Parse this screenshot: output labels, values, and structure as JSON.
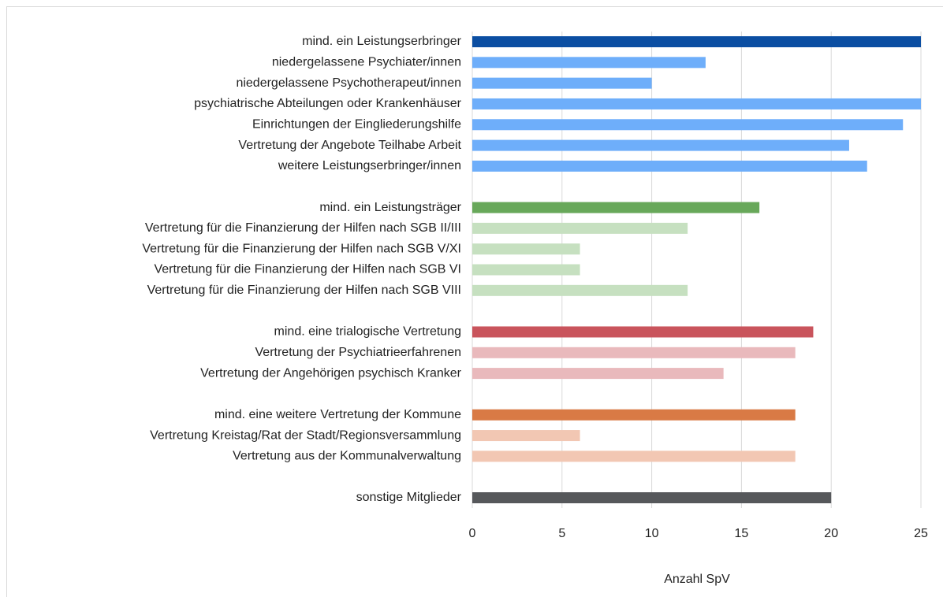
{
  "chart_data": {
    "type": "bar",
    "orientation": "horizontal",
    "x_label": "Anzahl SpV",
    "categories": [
      "mind. ein Leistungserbringer",
      "niedergelassene Psychiater/innen",
      "niedergelassene Psychotherapeut/innen",
      "psychiatrische Abteilungen oder Krankenhäuser",
      "Einrichtungen der Eingliederungshilfe",
      "Vertretung der Angebote Teilhabe Arbeit",
      "weitere Leistungserbringer/innen",
      null,
      "mind. ein Leistungsträger",
      "Vertretung für die Finanzierung der Hilfen nach SGB II/III",
      "Vertretung für die Finanzierung der Hilfen nach SGB V/XI",
      "Vertretung für die Finanzierung der Hilfen nach SGB VI",
      "Vertretung für die Finanzierung der Hilfen nach SGB VIII",
      null,
      "mind. eine trialogische Vertretung",
      "Vertretung der Psychiatrieerfahrenen",
      "Vertretung der Angehörigen psychisch Kranker",
      null,
      "mind. eine weitere Vertretung der Kommune",
      "Vertretung Kreistag/Rat der Stadt/Regionsversammlung",
      "Vertretung aus der Kommunalverwaltung",
      null,
      "sonstige Mitglieder"
    ],
    "values": [
      25,
      13,
      10,
      25,
      24,
      21,
      22,
      null,
      16,
      12,
      6,
      6,
      12,
      null,
      19,
      18,
      14,
      null,
      18,
      6,
      18,
      null,
      20
    ],
    "colors": [
      "#0b4ea2",
      "#6eaefa",
      "#6eaefa",
      "#6eaefa",
      "#6eaefa",
      "#6eaefa",
      "#6eaefa",
      null,
      "#68a85a",
      "#c6e0c0",
      "#c6e0c0",
      "#c6e0c0",
      "#c6e0c0",
      null,
      "#c9545c",
      "#e9b9bc",
      "#e9b9bc",
      null,
      "#d97a45",
      "#f2c7b3",
      "#f2c7b3",
      null,
      "#56585b"
    ],
    "xlim": [
      0,
      25
    ],
    "xticks": [
      0,
      5,
      10,
      15,
      20,
      25
    ],
    "grid": true
  }
}
